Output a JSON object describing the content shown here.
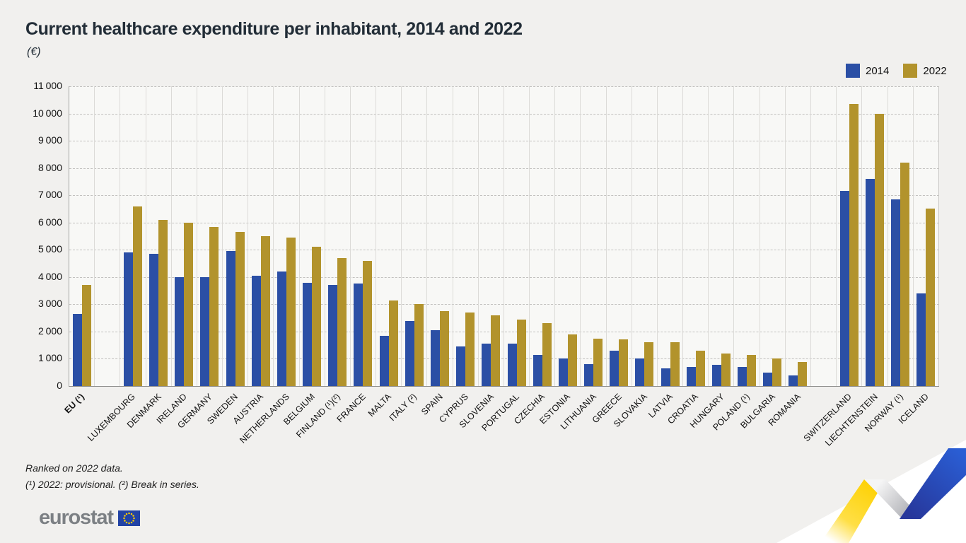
{
  "header": {
    "title": "Current healthcare expenditure per inhabitant, 2014 and 2022",
    "unit_label": "(€)"
  },
  "legend": {
    "items": [
      {
        "label": "2014",
        "color": "#2b4fa5"
      },
      {
        "label": "2022",
        "color": "#b2932c"
      }
    ]
  },
  "footnotes": {
    "line1": "Ranked on 2022 data.",
    "line2": "(¹) 2022: provisional. (²) Break in series."
  },
  "branding": {
    "logo_text": "eurostat"
  },
  "colors": {
    "series_2014": "#2b4fa5",
    "series_2022": "#b2932c",
    "page_background": "#f1f0ee",
    "plot_background": "#f8f8f6"
  },
  "chart_data": {
    "type": "bar",
    "title": "Current healthcare expenditure per inhabitant, 2014 and 2022",
    "ylabel": "(€)",
    "ylim": [
      0,
      11000
    ],
    "ytick_step": 1000,
    "ytick_labels": [
      "0",
      "1 000",
      "2 000",
      "3 000",
      "4 000",
      "5 000",
      "6 000",
      "7 000",
      "8 000",
      "9 000",
      "10 000",
      "11 000"
    ],
    "grid": "horizontal-dashed",
    "legend_position": "top-right",
    "series_names": [
      "2014",
      "2022"
    ],
    "rows": [
      {
        "label": "EU (¹)",
        "bold": true,
        "v2014": 2650,
        "v2022": 3700
      },
      {
        "label": "LUXEMBOURG",
        "gap_before": true,
        "v2014": 4900,
        "v2022": 6600
      },
      {
        "label": "DENMARK",
        "v2014": 4850,
        "v2022": 6100
      },
      {
        "label": "IRELAND",
        "v2014": 4000,
        "v2022": 6000
      },
      {
        "label": "GERMANY",
        "v2014": 4000,
        "v2022": 5850
      },
      {
        "label": "SWEDEN",
        "v2014": 4950,
        "v2022": 5650
      },
      {
        "label": "AUSTRIA",
        "v2014": 4050,
        "v2022": 5500
      },
      {
        "label": "NETHERLANDS",
        "v2014": 4200,
        "v2022": 5450
      },
      {
        "label": "BELGIUM",
        "v2014": 3800,
        "v2022": 5100
      },
      {
        "label": "FINLAND (¹)(²)",
        "v2014": 3700,
        "v2022": 4700
      },
      {
        "label": "FRANCE",
        "v2014": 3750,
        "v2022": 4600
      },
      {
        "label": "MALTA",
        "v2014": 1850,
        "v2022": 3150
      },
      {
        "label": "ITALY (²)",
        "v2014": 2400,
        "v2022": 3000
      },
      {
        "label": "SPAIN",
        "v2014": 2050,
        "v2022": 2750
      },
      {
        "label": "CYPRUS",
        "v2014": 1450,
        "v2022": 2700
      },
      {
        "label": "SLOVENIA",
        "v2014": 1550,
        "v2022": 2600
      },
      {
        "label": "PORTUGAL",
        "v2014": 1550,
        "v2022": 2450
      },
      {
        "label": "CZECHIA",
        "v2014": 1150,
        "v2022": 2300
      },
      {
        "label": "ESTONIA",
        "v2014": 1000,
        "v2022": 1900
      },
      {
        "label": "LITHUANIA",
        "v2014": 800,
        "v2022": 1750
      },
      {
        "label": "GREECE",
        "v2014": 1300,
        "v2022": 1700
      },
      {
        "label": "SLOVAKIA",
        "v2014": 1000,
        "v2022": 1600
      },
      {
        "label": "LATVIA",
        "v2014": 650,
        "v2022": 1600
      },
      {
        "label": "CROATIA",
        "v2014": 700,
        "v2022": 1300
      },
      {
        "label": "HUNGARY",
        "v2014": 780,
        "v2022": 1200
      },
      {
        "label": "POLAND (¹)",
        "v2014": 700,
        "v2022": 1150
      },
      {
        "label": "BULGARIA",
        "v2014": 500,
        "v2022": 1000
      },
      {
        "label": "ROMANIA",
        "v2014": 400,
        "v2022": 880
      },
      {
        "label": "SWITZERLAND",
        "gap_before": true,
        "v2014": 7150,
        "v2022": 10350
      },
      {
        "label": "LIECHTENSTEIN",
        "v2014": 7600,
        "v2022": 10000
      },
      {
        "label": "NORWAY (¹)",
        "v2014": 6850,
        "v2022": 8200
      },
      {
        "label": "ICELAND",
        "v2014": 3400,
        "v2022": 6500
      }
    ]
  }
}
